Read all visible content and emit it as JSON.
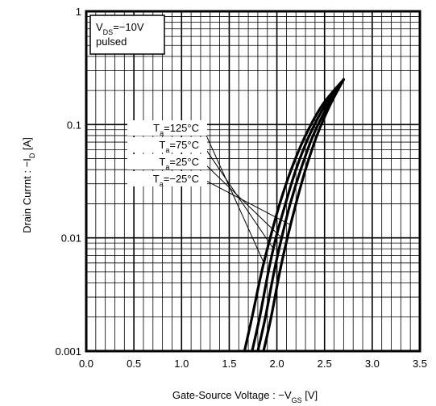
{
  "chart_data": {
    "type": "line",
    "title": "",
    "xlabel": {
      "prefix": "Gate-Source Voltage : −V",
      "sub": "GS",
      "suffix": " [V]"
    },
    "ylabel": {
      "prefix": "Drain Currnt : −I",
      "sub": "D",
      "suffix": " [A]"
    },
    "xlim": [
      0.0,
      3.5
    ],
    "ylim": [
      0.001,
      1
    ],
    "yscale": "log",
    "grid": true,
    "xticks": [
      0.0,
      0.5,
      1.0,
      1.5,
      2.0,
      2.5,
      3.0,
      3.5
    ],
    "xtick_labels": [
      "0.0",
      "0.5",
      "1.0",
      "1.5",
      "2.0",
      "2.5",
      "3.0",
      "3.5"
    ],
    "yticks": [
      0.001,
      0.01,
      0.1,
      1
    ],
    "ytick_labels": [
      "0.001",
      "0.01",
      "0.1",
      "1"
    ],
    "condition_box": {
      "line1_prefix": "V",
      "line1_sub": "DS",
      "line1_suffix": "=−10V",
      "line2": "pulsed",
      "position": "top-left"
    },
    "series": [
      {
        "label_prefix": "T",
        "label_sub": "a",
        "label_suffix": "=125°C",
        "x": [
          1.66,
          1.74,
          1.84,
          1.93,
          2.03,
          2.15,
          2.3,
          2.48,
          2.7
        ],
        "y": [
          0.001,
          0.002,
          0.005,
          0.01,
          0.02,
          0.04,
          0.08,
          0.15,
          0.25
        ]
      },
      {
        "label_prefix": "T",
        "label_sub": "a",
        "label_suffix": "=75°C",
        "x": [
          1.74,
          1.82,
          1.91,
          1.99,
          2.09,
          2.2,
          2.34,
          2.51,
          2.7
        ],
        "y": [
          0.001,
          0.002,
          0.005,
          0.01,
          0.02,
          0.04,
          0.08,
          0.15,
          0.25
        ]
      },
      {
        "label_prefix": "T",
        "label_sub": "a",
        "label_suffix": "=25°C",
        "x": [
          1.8,
          1.88,
          1.97,
          2.05,
          2.14,
          2.25,
          2.38,
          2.54,
          2.7
        ],
        "y": [
          0.001,
          0.002,
          0.005,
          0.01,
          0.02,
          0.04,
          0.08,
          0.15,
          0.25
        ]
      },
      {
        "label_prefix": "T",
        "label_sub": "a",
        "label_suffix": "=−25°C",
        "x": [
          1.86,
          1.94,
          2.03,
          2.11,
          2.2,
          2.3,
          2.42,
          2.56,
          2.7
        ],
        "y": [
          0.001,
          0.002,
          0.005,
          0.01,
          0.02,
          0.04,
          0.08,
          0.15,
          0.25
        ]
      }
    ]
  }
}
